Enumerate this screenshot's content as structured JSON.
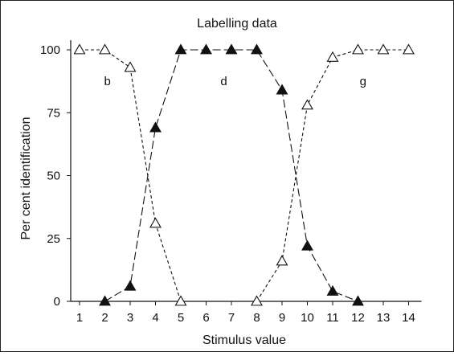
{
  "chart_data": {
    "type": "line",
    "title": "Labelling data",
    "xlabel": "Stimulus value",
    "ylabel": "Per cent identification",
    "xlim": [
      1,
      14
    ],
    "ylim": [
      0,
      100
    ],
    "xticks": [
      1,
      2,
      3,
      4,
      5,
      6,
      7,
      8,
      9,
      10,
      11,
      12,
      13,
      14
    ],
    "yticks": [
      0,
      25,
      50,
      75,
      100
    ],
    "grid": false,
    "region_labels": [
      {
        "text": "b",
        "x": 2.1,
        "y": 86
      },
      {
        "text": "d",
        "x": 6.7,
        "y": 86
      },
      {
        "text": "g",
        "x": 12.2,
        "y": 86
      }
    ],
    "series": [
      {
        "marker": "triangle-open",
        "line_style": "short-dash",
        "points": [
          [
            1,
            100
          ],
          [
            2,
            100
          ],
          [
            3,
            93
          ],
          [
            4,
            31
          ],
          [
            5,
            0
          ]
        ]
      },
      {
        "marker": "triangle-filled",
        "line_style": "long-dash",
        "points": [
          [
            2,
            0
          ],
          [
            3,
            6
          ],
          [
            4,
            69
          ],
          [
            5,
            100
          ],
          [
            6,
            100
          ],
          [
            7,
            100
          ],
          [
            8,
            100
          ],
          [
            9,
            84
          ],
          [
            10,
            22
          ],
          [
            11,
            4
          ],
          [
            12,
            0
          ]
        ]
      },
      {
        "marker": "triangle-open",
        "line_style": "short-dash",
        "points": [
          [
            8,
            0
          ],
          [
            9,
            16
          ],
          [
            10,
            78
          ],
          [
            11,
            97
          ],
          [
            12,
            100
          ],
          [
            13,
            100
          ],
          [
            14,
            100
          ]
        ]
      }
    ]
  }
}
